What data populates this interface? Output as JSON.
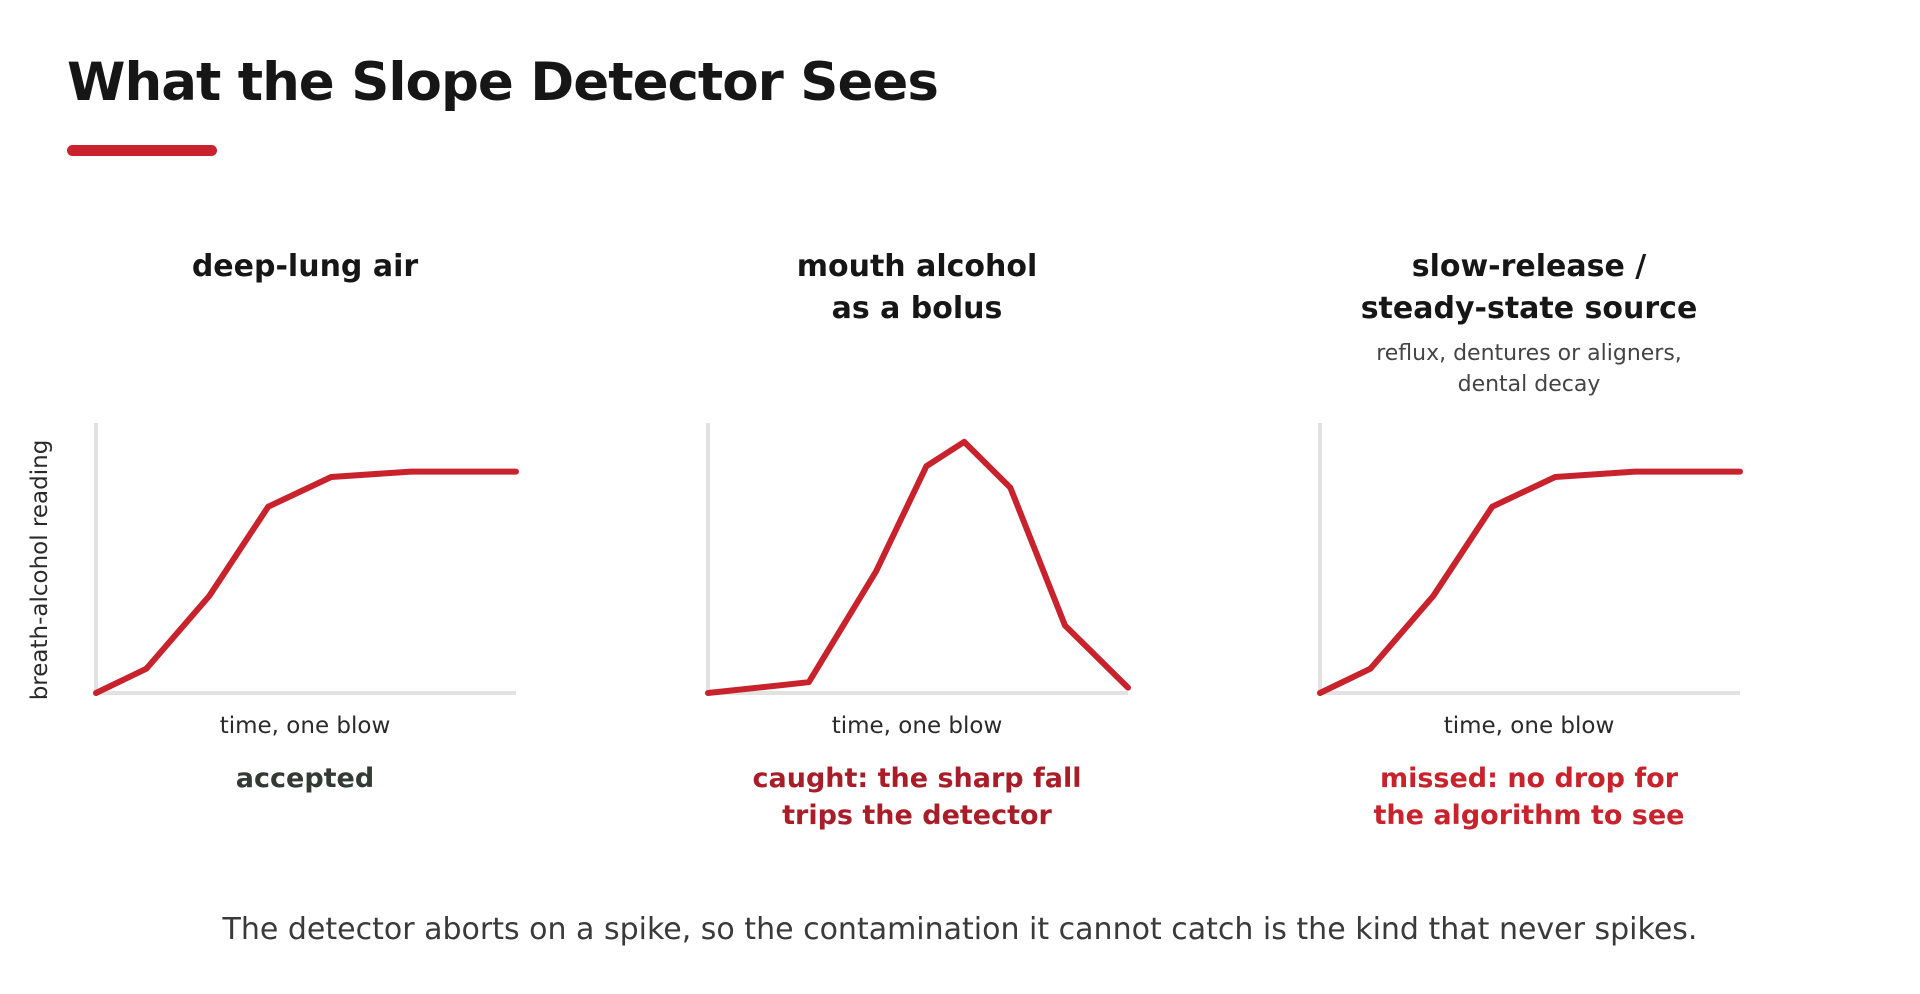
{
  "title": "What the Slope Detector Sees",
  "ylabel": "breath-alcohol reading",
  "footer": "The detector aborts on a spike, so the contamination it cannot catch is the kind that never spikes.",
  "colors": {
    "accent": "#c8232d",
    "axis": "#e2e2e2",
    "text": "#161616",
    "caught": "#a81d28"
  },
  "panels": [
    {
      "title": "deep-lung air",
      "subtitle": "",
      "xlabel": "time, one blow",
      "verdict": "accepted",
      "verdict_kind": "ok"
    },
    {
      "title": "mouth alcohol\nas a bolus",
      "subtitle": "",
      "xlabel": "time, one blow",
      "verdict": "caught: the sharp fall\ntrips the detector",
      "verdict_kind": "caught"
    },
    {
      "title": "slow-release /\nsteady-state source",
      "subtitle": "reflux, dentures or aligners,\ndental decay",
      "xlabel": "time, one blow",
      "verdict": "missed: no drop for\nthe algorithm to see",
      "verdict_kind": "missed"
    }
  ],
  "chart_data": [
    {
      "type": "line",
      "title": "deep-lung air",
      "xlabel": "time, one blow",
      "ylabel": "breath-alcohol reading",
      "xlim": [
        0,
        1
      ],
      "ylim": [
        0,
        1
      ],
      "grid": false,
      "series": [
        {
          "x": [
            0,
            0.12,
            0.27,
            0.41,
            0.56,
            0.75,
            1.0
          ],
          "y": [
            0,
            0.09,
            0.36,
            0.69,
            0.8,
            0.82,
            0.82
          ]
        }
      ]
    },
    {
      "type": "line",
      "title": "mouth alcohol as a bolus",
      "xlabel": "time, one blow",
      "ylabel": "",
      "xlim": [
        0,
        1
      ],
      "ylim": [
        0,
        1
      ],
      "grid": false,
      "series": [
        {
          "x": [
            0,
            0.24,
            0.4,
            0.52,
            0.61,
            0.72,
            0.85,
            1.0
          ],
          "y": [
            0,
            0.04,
            0.45,
            0.84,
            0.93,
            0.76,
            0.25,
            0.02
          ]
        }
      ]
    },
    {
      "type": "line",
      "title": "slow-release / steady-state source",
      "xlabel": "time, one blow",
      "ylabel": "",
      "xlim": [
        0,
        1
      ],
      "ylim": [
        0,
        1
      ],
      "grid": false,
      "series": [
        {
          "x": [
            0,
            0.12,
            0.27,
            0.41,
            0.56,
            0.75,
            1.0
          ],
          "y": [
            0,
            0.09,
            0.36,
            0.69,
            0.8,
            0.82,
            0.82
          ]
        }
      ]
    }
  ]
}
